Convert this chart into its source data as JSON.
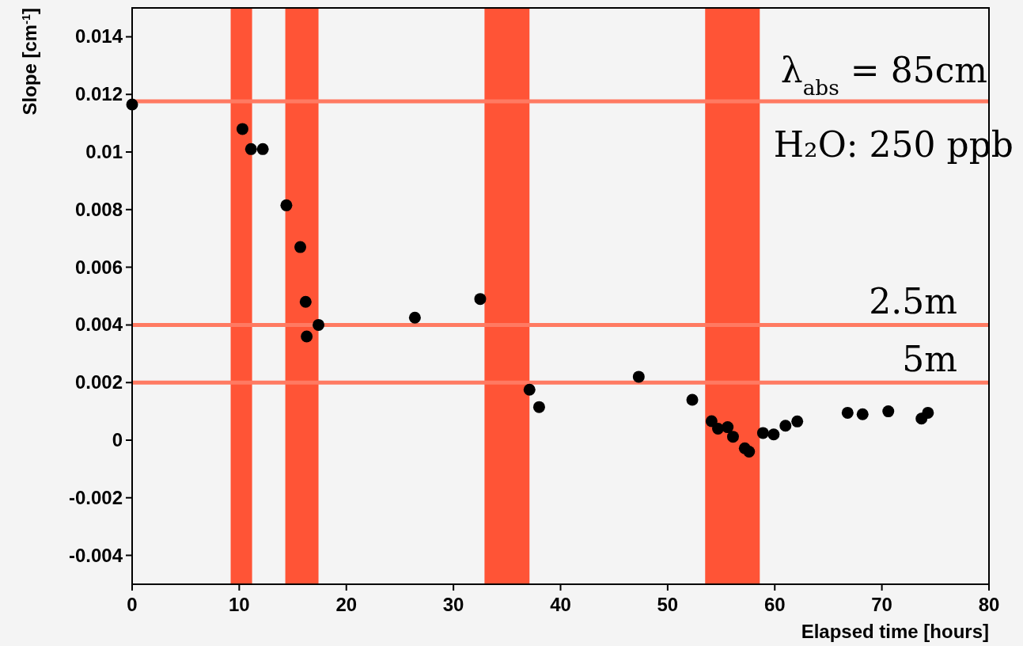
{
  "chart_data": {
    "type": "scatter",
    "xlabel": "Elapsed time [hours]",
    "ylabel": "Slope [cm$^{-1}$]",
    "xlim": [
      0,
      80
    ],
    "xticks": [
      0,
      10,
      20,
      30,
      40,
      50,
      60,
      70,
      80
    ],
    "ylim": [
      -0.005,
      0.015
    ],
    "yticks": [
      -0.004,
      -0.002,
      0,
      0.002,
      0.004,
      0.006,
      0.008,
      0.01,
      0.012,
      0.014
    ],
    "marker": "circle",
    "grid": false,
    "series": [
      {
        "color": "#000000",
        "x": [
          0,
          10.3,
          11.1,
          12.2,
          14.4,
          15.7,
          16.2,
          16.3,
          17.4,
          26.4,
          32.5,
          37.1,
          38.0,
          47.3,
          52.3,
          54.1,
          54.7,
          55.6,
          56.1,
          57.2,
          57.6,
          58.9,
          59.9,
          61.0,
          62.1,
          66.8,
          68.2,
          70.6,
          73.7,
          74.3
        ],
        "values": [
          0.01165,
          0.0108,
          0.0101,
          0.0101,
          0.00815,
          0.0067,
          0.0048,
          0.0036,
          0.004,
          0.00425,
          0.0049,
          0.00175,
          0.00115,
          0.0022,
          0.0014,
          0.00066,
          0.0004,
          0.00045,
          0.00012,
          -0.00028,
          -0.0004,
          0.00025,
          0.0002,
          0.0005,
          0.00065,
          0.00095,
          0.0009,
          0.001,
          0.00075,
          0.00095
        ]
      }
    ],
    "ref_lines": [
      {
        "axis": "y",
        "value": 0.01176,
        "color": "#ff7a62"
      },
      {
        "axis": "y",
        "value": 0.004,
        "label": "2.5m",
        "color": "#ff7a62"
      },
      {
        "axis": "y",
        "value": 0.002,
        "label": "5m",
        "color": "#ff7a62"
      }
    ],
    "bands": [
      {
        "axis": "x",
        "from": 9.2,
        "to": 11.2,
        "color": "#ff5436"
      },
      {
        "axis": "x",
        "from": 14.3,
        "to": 17.4,
        "color": "#ff5436"
      },
      {
        "axis": "x",
        "from": 32.9,
        "to": 37.1,
        "color": "#ff5436"
      },
      {
        "axis": "x",
        "from": 53.5,
        "to": 58.6,
        "color": "#ff5436"
      }
    ],
    "annotations": [
      "λ$_{abs}$ = 85cm",
      "H₂O: 250 ppb"
    ]
  }
}
